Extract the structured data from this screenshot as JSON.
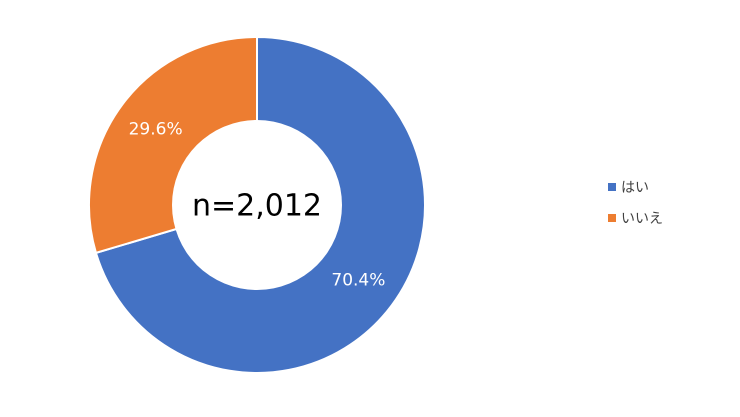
{
  "chart_data": {
    "type": "donut",
    "categories": [
      "はい",
      "いいえ"
    ],
    "values": [
      70.4,
      29.6
    ],
    "value_labels": [
      "70.4%",
      "29.6%"
    ],
    "colors": [
      "#4472c4",
      "#ed7d31"
    ],
    "center_label": "n=2,012",
    "legend": "right"
  }
}
